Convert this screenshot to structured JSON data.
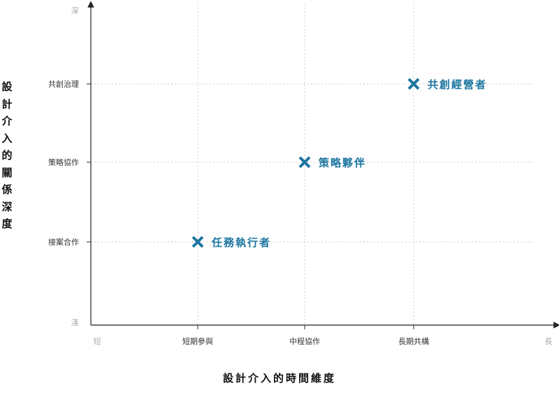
{
  "chart_data": {
    "type": "scatter",
    "xlabel": "設計介入的時間維度",
    "ylabel": "設計介入的關係深度",
    "x_end_labels": [
      "短",
      "長"
    ],
    "y_end_labels": [
      "淺",
      "深"
    ],
    "x_categories": [
      "短期參與",
      "中程協作",
      "長期共構"
    ],
    "y_categories": [
      "接案合作",
      "策略協作",
      "共創治理"
    ],
    "grid": true,
    "marker_color": "#1b75a0",
    "points": [
      {
        "x": "短期參與",
        "y": "接案合作",
        "label": "任務執行者"
      },
      {
        "x": "中程協作",
        "y": "策略協作",
        "label": "策略夥伴"
      },
      {
        "x": "長期共構",
        "y": "共創治理",
        "label": "共創經營者"
      }
    ]
  }
}
